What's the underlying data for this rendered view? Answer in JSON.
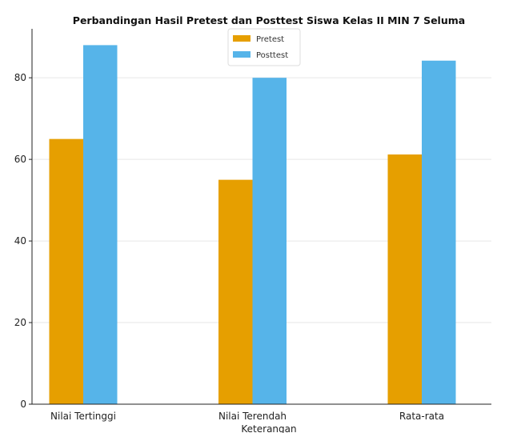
{
  "chart_data": {
    "type": "bar",
    "title": "Perbandingan Hasil Pretest dan Posttest Siswa Kelas II MIN 7 Seluma",
    "xlabel": "Keterangan",
    "ylabel": "",
    "categories": [
      "Nilai Tertinggi",
      "Nilai Terendah",
      "Rata-rata"
    ],
    "series": [
      {
        "name": "Pretest",
        "values": [
          65,
          55,
          61.2
        ],
        "color": "#E69F00"
      },
      {
        "name": "Posttest",
        "values": [
          88,
          80,
          84.2
        ],
        "color": "#56B4E9"
      }
    ],
    "ylim": [
      0,
      92
    ],
    "yticks": [
      0,
      20,
      40,
      60,
      80
    ],
    "grid": true,
    "legend_position": "top-center"
  }
}
